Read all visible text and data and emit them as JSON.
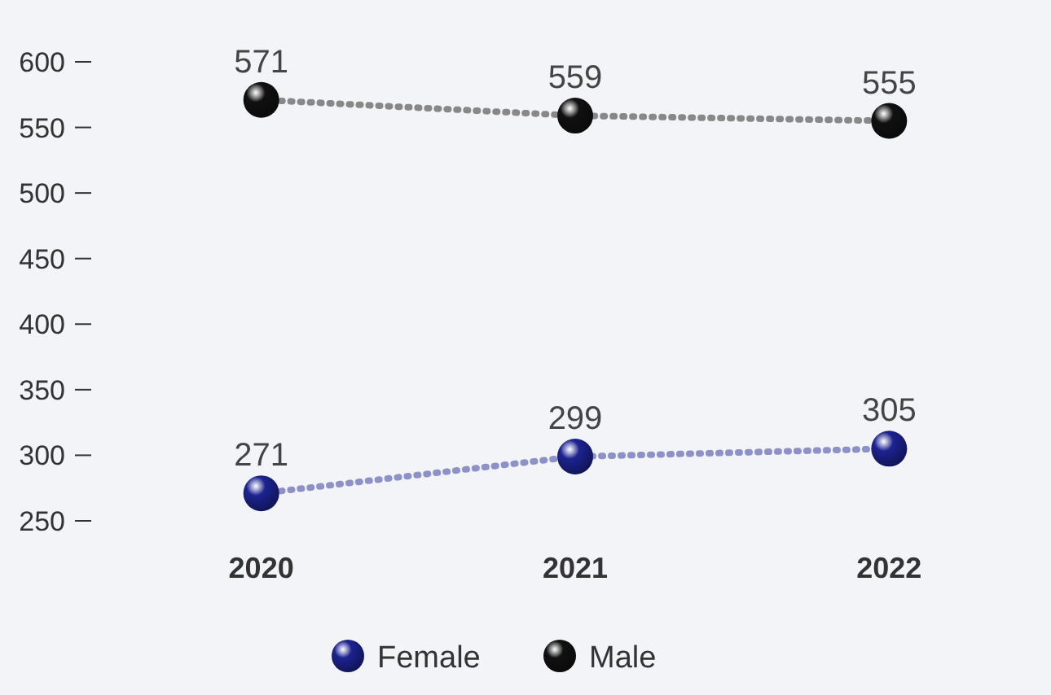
{
  "chart_data": {
    "type": "line",
    "categories": [
      "2020",
      "2021",
      "2022"
    ],
    "series": [
      {
        "name": "Female",
        "color": "#1c2390",
        "values": [
          271,
          299,
          305
        ]
      },
      {
        "name": "Male",
        "color": "#111111",
        "values": [
          571,
          559,
          555
        ]
      }
    ],
    "ylim": [
      250,
      600
    ],
    "yticks": [
      250,
      300,
      350,
      400,
      450,
      500,
      550,
      600
    ],
    "grid": false,
    "legend": "bottom",
    "marker": "circle",
    "line_style": "dotted",
    "data_labels": true
  }
}
